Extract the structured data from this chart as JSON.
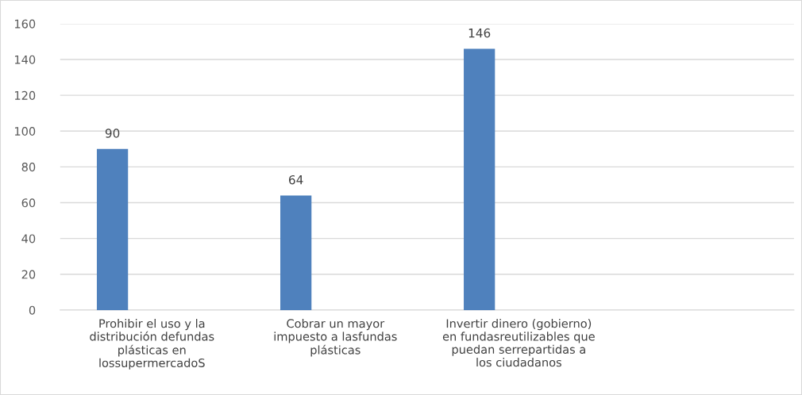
{
  "chart_data": {
    "type": "bar",
    "categories": [
      "Prohibir el uso y la\ndistribución defundas\nplásticas en\nlossupermercadoS",
      "Cobrar un mayor\nimpuesto a lasfundas\nplásticas",
      "Invertir dinero (gobierno)\nen fundasreutilizables que\npuedan serrepartidas a\nlos ciudadanos",
      null
    ],
    "values": [
      90,
      64,
      146,
      null
    ],
    "color": "#4f81bd",
    "ylim": [
      0,
      160
    ],
    "yticks": [
      0,
      20,
      40,
      60,
      80,
      100,
      120,
      140,
      160
    ],
    "grid": "y",
    "data_labels": true
  }
}
